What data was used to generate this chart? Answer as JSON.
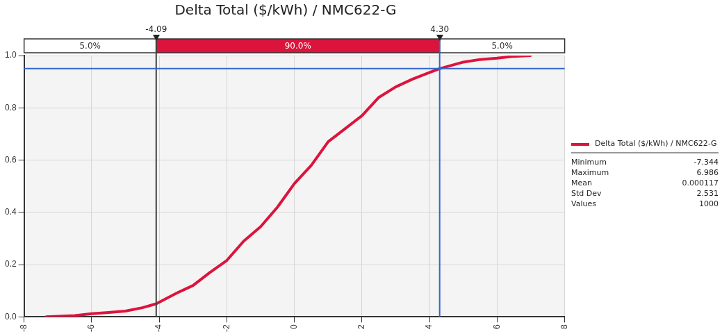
{
  "chart_data": {
    "type": "line",
    "title": "Delta Total ($/kWh) / NMC622-G",
    "x": [
      -7.344,
      -6.5,
      -6,
      -5.5,
      -5,
      -4.5,
      -4.09,
      -3.5,
      -3,
      -2.5,
      -2,
      -1.5,
      -1,
      -0.5,
      0,
      0.5,
      1,
      1.5,
      2,
      2.5,
      3,
      3.5,
      4,
      4.3,
      5,
      5.5,
      6,
      6.5,
      6.986
    ],
    "series": [
      {
        "name": "Delta Total ($/kWh) / NMC622-G",
        "color": "#dc143c",
        "values": [
          0.0,
          0.005,
          0.012,
          0.017,
          0.022,
          0.035,
          0.05,
          0.09,
          0.12,
          0.17,
          0.216,
          0.29,
          0.345,
          0.42,
          0.51,
          0.58,
          0.67,
          0.72,
          0.77,
          0.84,
          0.88,
          0.91,
          0.935,
          0.95,
          0.975,
          0.985,
          0.99,
          0.997,
          1.0
        ]
      }
    ],
    "xlim": [
      -8,
      8
    ],
    "xticks": [
      -8,
      -6,
      -4,
      -2,
      0,
      2,
      4,
      6,
      8
    ],
    "ylim": [
      0,
      1
    ],
    "yticks": [
      {
        "value": 0,
        "label": "0.0"
      },
      {
        "value": 0.2,
        "label": "0.2"
      },
      {
        "value": 0.4,
        "label": "0.4"
      },
      {
        "value": 0.6,
        "label": "0.6"
      },
      {
        "value": 0.8,
        "label": "0.8"
      },
      {
        "value": 1,
        "label": "1.0"
      }
    ],
    "grid": true,
    "legend": "right",
    "marker": "none",
    "line_style": "solid",
    "ref_lines": [
      {
        "axis": "x",
        "value": -4.09,
        "label": "-4.09",
        "color": "#404040"
      },
      {
        "axis": "x",
        "value": 4.3,
        "label": "4.30",
        "color": "#3366cc"
      },
      {
        "axis": "y",
        "value": 0.95,
        "label": null,
        "color": "#3366cc"
      }
    ],
    "annotations": [
      "5.0%",
      "90.0%",
      "5.0%",
      "Minimum",
      "-7.344",
      "Maximum",
      "6.986",
      "Mean",
      "0.000117",
      "Std Dev",
      "2.531",
      "Values",
      "1000"
    ]
  }
}
